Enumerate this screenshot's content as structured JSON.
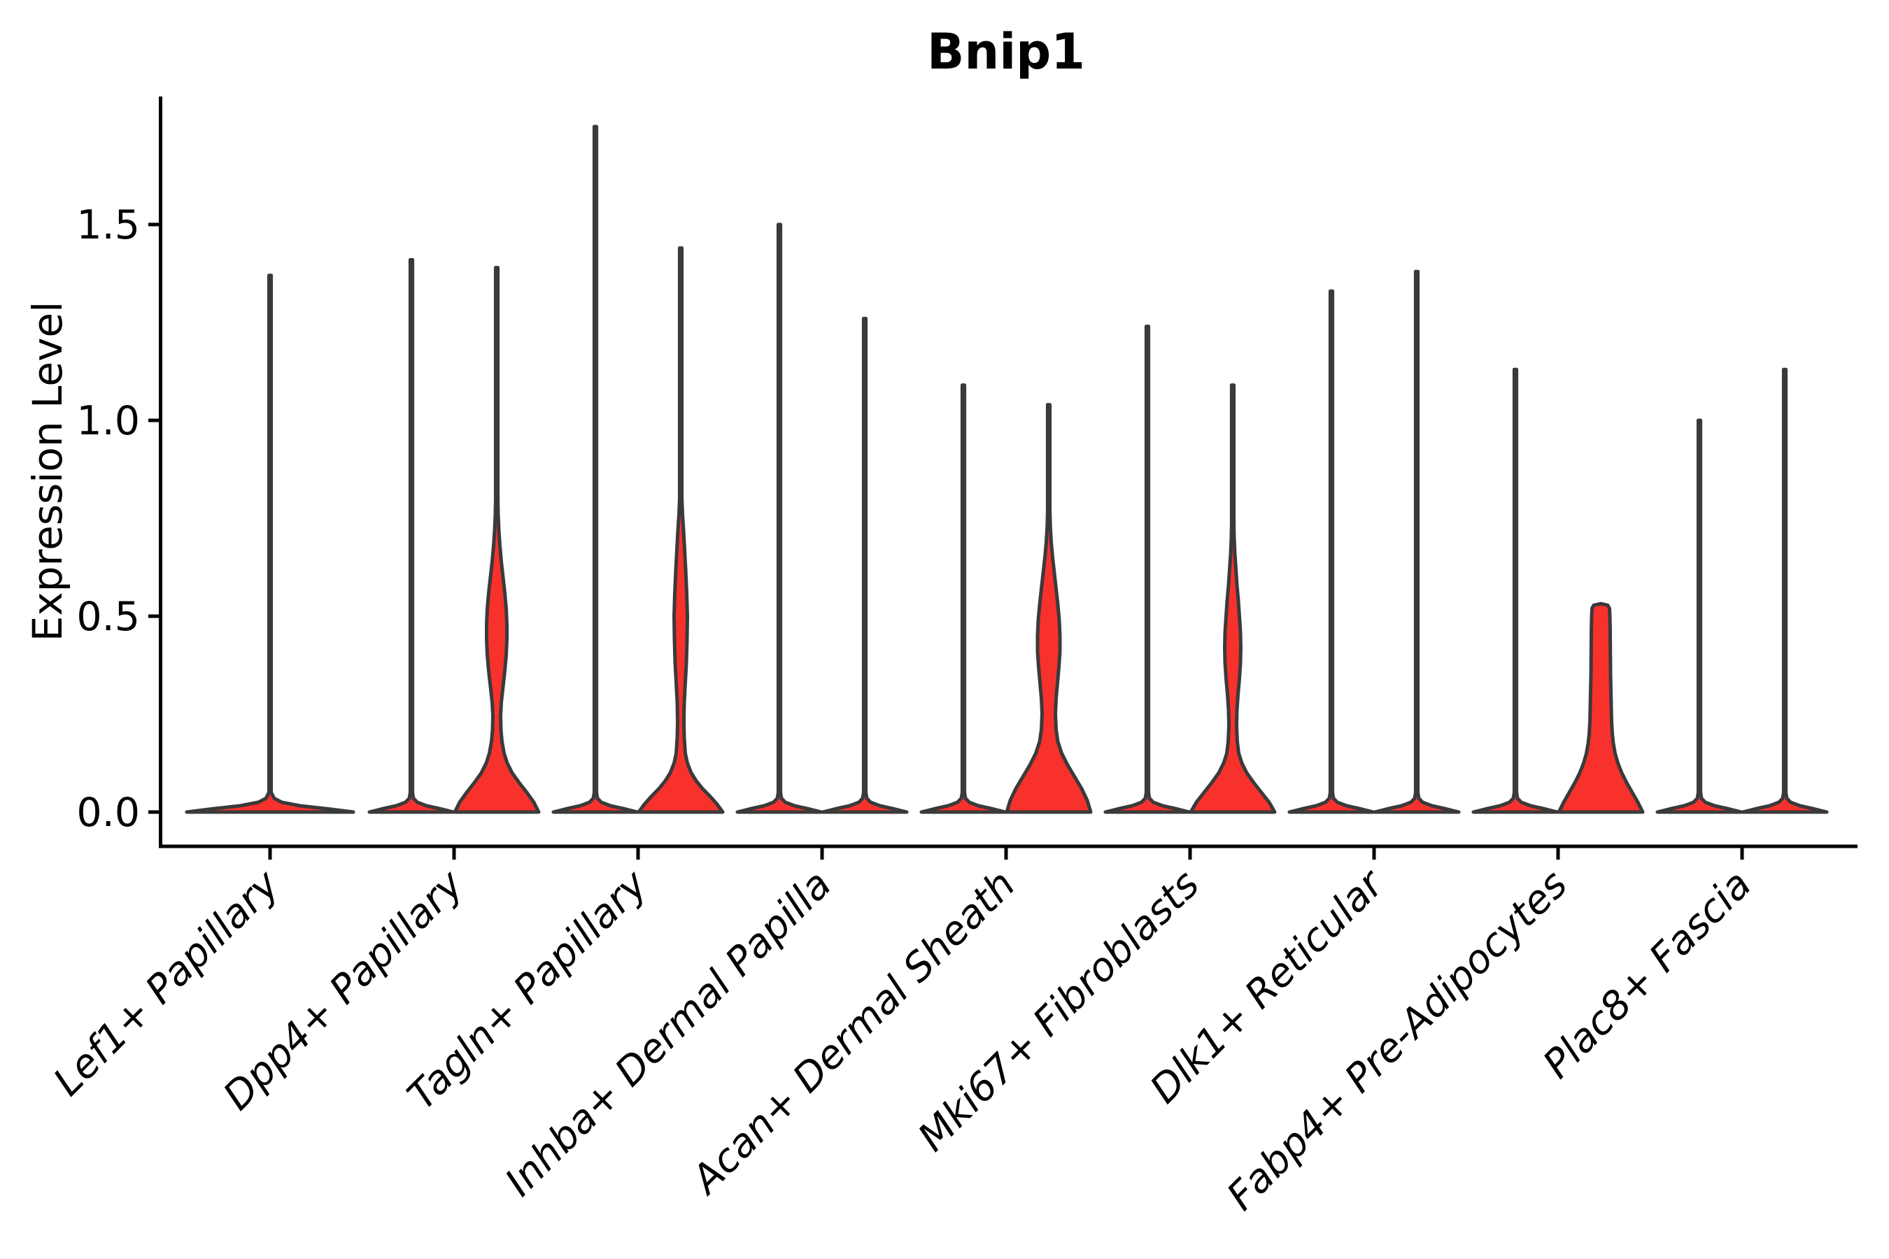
{
  "chart_data": {
    "type": "violin",
    "title": "Bnip1",
    "xlabel": "",
    "ylabel": "Expression Level",
    "ytick_labels": [
      "0.0",
      "0.5",
      "1.0",
      "1.5"
    ],
    "ytick_values": [
      0.0,
      0.5,
      1.0,
      1.5
    ],
    "ylim": [
      -0.09,
      1.83
    ],
    "grid": false,
    "legend": "none",
    "categories": [
      "Lef1+ Papillary",
      "Dpp4+ Papillary",
      "Tagln+ Papillary",
      "Inhba+ Dermal Papilla",
      "Acan+ Dermal Sheath",
      "Mki67+ Fibroblasts",
      "Dlk1+ Reticular",
      "Fabp4+ Pre-Adipocytes",
      "Plac8+ Fascia"
    ],
    "description": "Violin plot of Bnip1 expression; each cell-type category holds two dodged violins (first category a single full-width violin). Most cells have expression 0 (flat base); thin spikes mark the max expressed value; red density bodies appear where enough cells express.",
    "violins": [
      {
        "cat": 0,
        "side": "single",
        "max": 1.37,
        "base_halfwidth": 119,
        "body_profile": null
      },
      {
        "cat": 1,
        "side": "left",
        "max": 1.41,
        "base_halfwidth": 60,
        "body_profile": null
      },
      {
        "cat": 1,
        "side": "right",
        "max": 1.39,
        "base_halfwidth": 60,
        "body_profile": [
          [
            0,
            60
          ],
          [
            0.025,
            53
          ],
          [
            0.05,
            43
          ],
          [
            0.075,
            32
          ],
          [
            0.1,
            22
          ],
          [
            0.125,
            15
          ],
          [
            0.15,
            10.5
          ],
          [
            0.18,
            7.5
          ],
          [
            0.21,
            6
          ],
          [
            0.245,
            5.5
          ],
          [
            0.28,
            6.5
          ],
          [
            0.32,
            9
          ],
          [
            0.36,
            11.5
          ],
          [
            0.4,
            13.5
          ],
          [
            0.44,
            14.5
          ],
          [
            0.48,
            14.5
          ],
          [
            0.52,
            13.5
          ],
          [
            0.56,
            11.5
          ],
          [
            0.6,
            9
          ],
          [
            0.64,
            6.5
          ],
          [
            0.68,
            4.5
          ],
          [
            0.72,
            3
          ],
          [
            0.76,
            2.0
          ],
          [
            0.8,
            1.6
          ],
          [
            1.39,
            1.6
          ]
        ]
      },
      {
        "cat": 2,
        "side": "left",
        "max": 1.75,
        "base_halfwidth": 60,
        "body_profile": null
      },
      {
        "cat": 2,
        "side": "right",
        "max": 1.44,
        "base_halfwidth": 60,
        "body_profile": [
          [
            0,
            60
          ],
          [
            0.02,
            52
          ],
          [
            0.04,
            42
          ],
          [
            0.06,
            31
          ],
          [
            0.08,
            22
          ],
          [
            0.1,
            15
          ],
          [
            0.125,
            9.5
          ],
          [
            0.15,
            6.5
          ],
          [
            0.19,
            5
          ],
          [
            0.23,
            4.5
          ],
          [
            0.28,
            5
          ],
          [
            0.33,
            6.5
          ],
          [
            0.38,
            8
          ],
          [
            0.44,
            9
          ],
          [
            0.5,
            9.5
          ],
          [
            0.56,
            8.5
          ],
          [
            0.62,
            7
          ],
          [
            0.67,
            5.5
          ],
          [
            0.72,
            4
          ],
          [
            0.76,
            2.5
          ],
          [
            0.8,
            1.6
          ],
          [
            1.44,
            1.6
          ]
        ]
      },
      {
        "cat": 3,
        "side": "left",
        "max": 1.5,
        "base_halfwidth": 60,
        "body_profile": null
      },
      {
        "cat": 3,
        "side": "right",
        "max": 1.26,
        "base_halfwidth": 60,
        "body_profile": null
      },
      {
        "cat": 4,
        "side": "left",
        "max": 1.09,
        "base_halfwidth": 60,
        "body_profile": null
      },
      {
        "cat": 4,
        "side": "right",
        "max": 1.04,
        "base_halfwidth": 60,
        "body_profile": [
          [
            0,
            60
          ],
          [
            0.03,
            55
          ],
          [
            0.06,
            47
          ],
          [
            0.09,
            37
          ],
          [
            0.12,
            27
          ],
          [
            0.15,
            18.5
          ],
          [
            0.18,
            13
          ],
          [
            0.21,
            10.5
          ],
          [
            0.25,
            9.5
          ],
          [
            0.29,
            10.5
          ],
          [
            0.33,
            12.5
          ],
          [
            0.37,
            14.5
          ],
          [
            0.41,
            16
          ],
          [
            0.45,
            16
          ],
          [
            0.49,
            15
          ],
          [
            0.53,
            13
          ],
          [
            0.57,
            10.5
          ],
          [
            0.61,
            8
          ],
          [
            0.65,
            5.5
          ],
          [
            0.69,
            3.5
          ],
          [
            0.73,
            2.2
          ],
          [
            0.77,
            1.6
          ],
          [
            1.04,
            1.6
          ]
        ]
      },
      {
        "cat": 5,
        "side": "left",
        "max": 1.24,
        "base_halfwidth": 60,
        "body_profile": null
      },
      {
        "cat": 5,
        "side": "right",
        "max": 1.09,
        "base_halfwidth": 60,
        "body_profile": [
          [
            0,
            60
          ],
          [
            0.025,
            52
          ],
          [
            0.05,
            41
          ],
          [
            0.075,
            30
          ],
          [
            0.1,
            20
          ],
          [
            0.125,
            13
          ],
          [
            0.15,
            8.5
          ],
          [
            0.18,
            6.5
          ],
          [
            0.22,
            5.5
          ],
          [
            0.26,
            6
          ],
          [
            0.3,
            7.5
          ],
          [
            0.34,
            9.5
          ],
          [
            0.38,
            11
          ],
          [
            0.42,
            11.5
          ],
          [
            0.46,
            11
          ],
          [
            0.5,
            9.5
          ],
          [
            0.54,
            8
          ],
          [
            0.58,
            6
          ],
          [
            0.62,
            4.5
          ],
          [
            0.66,
            3
          ],
          [
            0.7,
            2.0
          ],
          [
            0.74,
            1.6
          ],
          [
            1.09,
            1.6
          ]
        ]
      },
      {
        "cat": 6,
        "side": "left",
        "max": 1.33,
        "base_halfwidth": 60,
        "body_profile": null
      },
      {
        "cat": 6,
        "side": "right",
        "max": 1.38,
        "base_halfwidth": 60,
        "body_profile": null
      },
      {
        "cat": 7,
        "side": "left",
        "max": 1.13,
        "base_halfwidth": 60,
        "body_profile": null
      },
      {
        "cat": 7,
        "side": "right",
        "max": 0.53,
        "base_halfwidth": 60,
        "body_profile": [
          [
            0,
            60
          ],
          [
            0.025,
            53
          ],
          [
            0.05,
            45
          ],
          [
            0.075,
            37
          ],
          [
            0.1,
            30
          ],
          [
            0.125,
            24.5
          ],
          [
            0.15,
            20.5
          ],
          [
            0.175,
            18
          ],
          [
            0.2,
            16.5
          ],
          [
            0.23,
            15.5
          ],
          [
            0.27,
            15
          ],
          [
            0.31,
            14.5
          ],
          [
            0.35,
            14
          ],
          [
            0.39,
            13.8
          ],
          [
            0.43,
            13.6
          ],
          [
            0.47,
            13.4
          ],
          [
            0.5,
            13
          ],
          [
            0.52,
            12.5
          ],
          [
            0.528,
            10
          ],
          [
            0.532,
            0
          ]
        ]
      },
      {
        "cat": 8,
        "side": "left",
        "max": 1.0,
        "base_halfwidth": 60,
        "body_profile": null
      },
      {
        "cat": 8,
        "side": "right",
        "max": 1.13,
        "base_halfwidth": 60,
        "body_profile": null
      }
    ],
    "colors": {
      "violin_fill": "#F8312C",
      "violin_outline": "#3A3A3A",
      "axis": "#000000",
      "text": "#000000",
      "background": "#FFFFFF"
    }
  }
}
